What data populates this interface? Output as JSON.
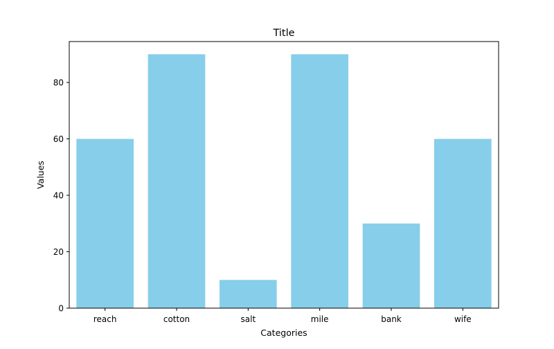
{
  "chart_data": {
    "type": "bar",
    "title": "Title",
    "xlabel": "Categories",
    "ylabel": "Values",
    "categories": [
      "reach",
      "cotton",
      "salt",
      "mile",
      "bank",
      "wife"
    ],
    "values": [
      60,
      90,
      10,
      90,
      30,
      60
    ],
    "ylim": [
      0,
      94.5
    ],
    "yticks": [
      0,
      20,
      40,
      60,
      80
    ],
    "bar_color": "#87ceeb",
    "grid": false,
    "legend": false
  }
}
